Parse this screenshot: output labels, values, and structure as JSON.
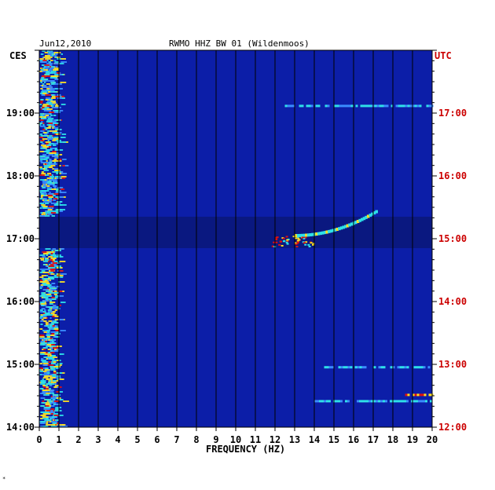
{
  "header": {
    "date": "Jun12,2010",
    "station": "RWMO HHZ BW 01 (Wildenmoos)"
  },
  "corner_mark": "*",
  "chart_data": {
    "type": "heatmap",
    "title": "RWMO HHZ BW 01 (Wildenmoos)",
    "date": "Jun12,2010",
    "xlabel": "FREQUENCY (HZ)",
    "xlim": [
      0,
      20
    ],
    "x_ticks": [
      "0",
      "1",
      "2",
      "3",
      "4",
      "5",
      "6",
      "7",
      "8",
      "9",
      "10",
      "11",
      "12",
      "13",
      "14",
      "15",
      "16",
      "17",
      "18",
      "19",
      "20"
    ],
    "left_axis": {
      "label": "CES",
      "range_hours": [
        14,
        20
      ],
      "ticks": [
        {
          "hour": 19,
          "label": "19:00"
        },
        {
          "hour": 18,
          "label": "18:00"
        },
        {
          "hour": 17,
          "label": "17:00"
        },
        {
          "hour": 16,
          "label": "16:00"
        },
        {
          "hour": 15,
          "label": "15:00"
        },
        {
          "hour": 14,
          "label": "14:00"
        }
      ]
    },
    "right_axis": {
      "label": "UTC",
      "color": "#cc0000",
      "ticks": [
        {
          "hour": 19,
          "label": "17:00"
        },
        {
          "hour": 18,
          "label": "16:00"
        },
        {
          "hour": 17,
          "label": "15:00"
        },
        {
          "hour": 16,
          "label": "14:00"
        },
        {
          "hour": 15,
          "label": "13:00"
        },
        {
          "hour": 14,
          "label": "12:00"
        }
      ]
    },
    "background_color": "#0c1ea8",
    "grid": "vertical lines at each 1 Hz",
    "features": [
      {
        "name": "low-frequency band",
        "f_from": 0,
        "f_to": 1.8,
        "t_from": 14.0,
        "t_to": 20.0,
        "intensity": "high"
      },
      {
        "name": "quiet gap",
        "f_from": 0,
        "f_to": 20,
        "t_from": 16.85,
        "t_to": 17.35,
        "intensity": "low"
      },
      {
        "name": "tonal line",
        "f_from": 12.5,
        "f_to": 20,
        "t_from": 19.12,
        "t_to": 19.12,
        "intensity": "medium"
      },
      {
        "name": "gliding tone",
        "f_from": 13.0,
        "f_to": 17.2,
        "t_from": 17.05,
        "t_to": 17.45,
        "intensity": "high"
      },
      {
        "name": "burst",
        "f_from": 11.8,
        "f_to": 14.0,
        "t_from": 16.88,
        "t_to": 17.05,
        "intensity": "high"
      },
      {
        "name": "tonal line",
        "f_from": 14.5,
        "f_to": 20,
        "t_from": 14.96,
        "t_to": 14.96,
        "intensity": "medium"
      },
      {
        "name": "tonal line",
        "f_from": 18.5,
        "f_to": 20,
        "t_from": 14.52,
        "t_to": 14.52,
        "intensity": "high"
      },
      {
        "name": "tonal line",
        "f_from": 14.0,
        "f_to": 20,
        "t_from": 14.42,
        "t_to": 14.42,
        "intensity": "medium"
      }
    ]
  },
  "colors": {
    "low": "#0c1ea8",
    "mid": "#2ee0e8",
    "high": "#ffe020",
    "peak": "#e01010"
  }
}
